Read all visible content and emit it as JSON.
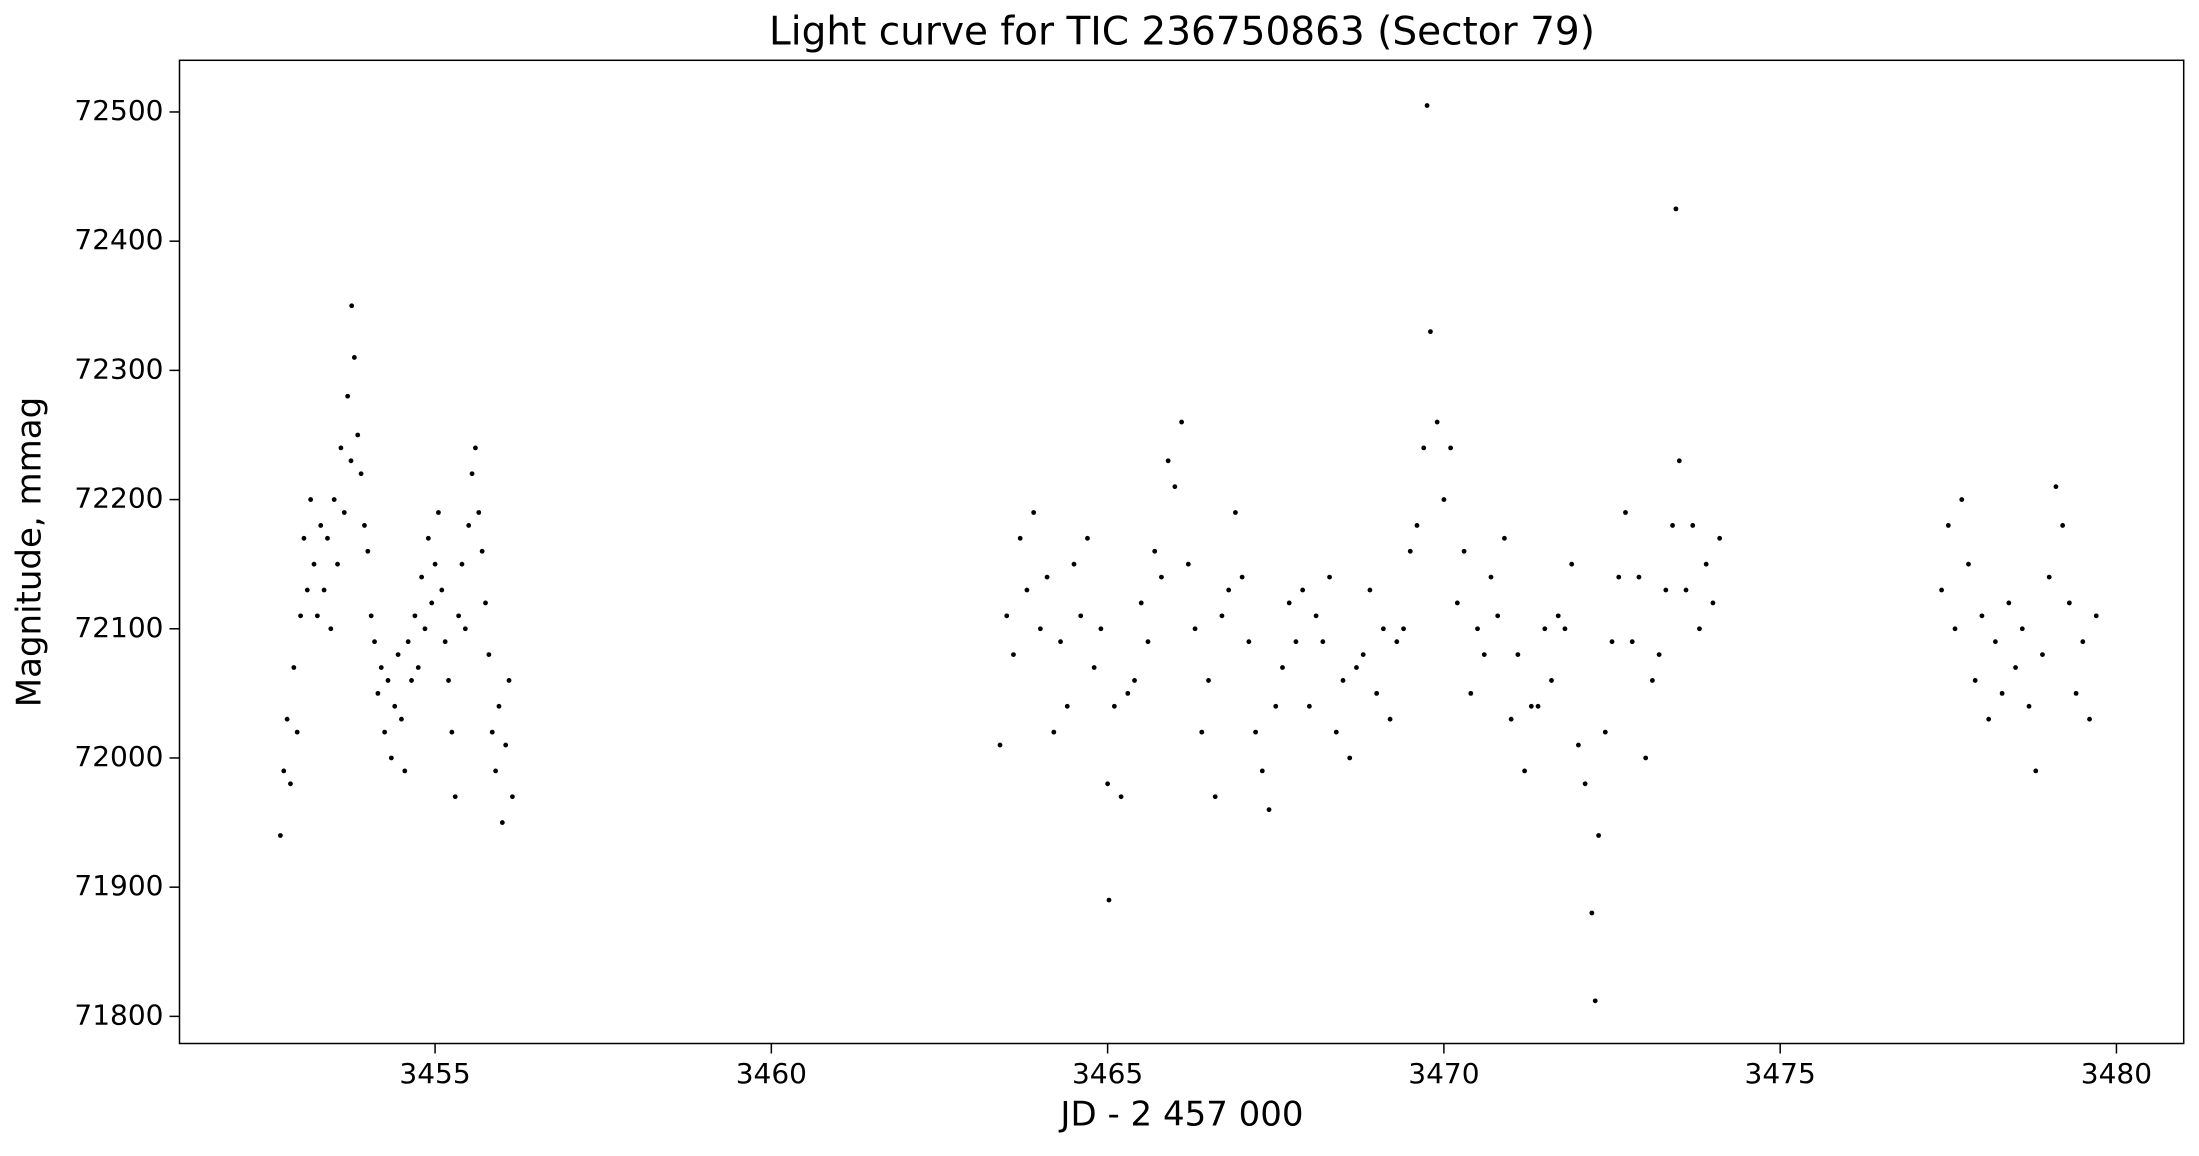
{
  "chart_data": {
    "type": "scatter",
    "title": "Light curve for TIC 236750863 (Sector 79)",
    "x_label": "JD - 2 457 000",
    "y_label": "Magnitude, mmag",
    "color": "#000000",
    "grid": false,
    "xlim": [
      3451.2,
      3481.0
    ],
    "ylim": [
      71779,
      72540
    ],
    "xticks": [
      3455,
      3460,
      3465,
      3470,
      3475,
      3480
    ],
    "yticks": [
      71800,
      71900,
      72000,
      72100,
      72200,
      72300,
      72400,
      72500
    ],
    "x": [
      3452.7,
      3452.75,
      3452.8,
      3452.85,
      3452.9,
      3452.95,
      3453.0,
      3453.05,
      3453.1,
      3453.15,
      3453.2,
      3453.25,
      3453.3,
      3453.35,
      3453.4,
      3453.45,
      3453.5,
      3453.55,
      3453.6,
      3453.65,
      3453.7,
      3453.75,
      3453.8,
      3453.85,
      3453.9,
      3453.95,
      3454.0,
      3454.05,
      3454.1,
      3454.15,
      3454.2,
      3454.25,
      3454.3,
      3454.35,
      3454.4,
      3454.45,
      3454.5,
      3454.55,
      3454.6,
      3454.65,
      3454.7,
      3454.75,
      3454.8,
      3454.85,
      3454.9,
      3454.95,
      3455.0,
      3455.05,
      3455.1,
      3455.15,
      3455.2,
      3455.25,
      3455.3,
      3455.35,
      3455.4,
      3455.45,
      3455.5,
      3455.55,
      3455.6,
      3455.65,
      3455.7,
      3455.75,
      3455.8,
      3455.85,
      3455.9,
      3455.95,
      3456.0,
      3456.05,
      3456.1,
      3456.15,
      3453.76,
      3463.4,
      3463.5,
      3463.6,
      3463.7,
      3463.8,
      3463.9,
      3464.0,
      3464.1,
      3464.2,
      3464.3,
      3464.4,
      3464.5,
      3464.6,
      3464.7,
      3464.8,
      3464.9,
      3465.0,
      3465.1,
      3465.2,
      3465.3,
      3465.4,
      3465.5,
      3465.6,
      3465.7,
      3465.8,
      3465.9,
      3466.0,
      3466.1,
      3466.2,
      3466.3,
      3466.4,
      3466.5,
      3466.6,
      3466.7,
      3466.8,
      3466.9,
      3467.0,
      3467.1,
      3467.2,
      3467.3,
      3467.4,
      3467.5,
      3467.6,
      3467.7,
      3467.8,
      3467.9,
      3468.0,
      3468.1,
      3468.2,
      3468.3,
      3468.4,
      3468.5,
      3468.6,
      3468.7,
      3468.8,
      3468.9,
      3469.0,
      3469.1,
      3469.2,
      3469.3,
      3469.4,
      3469.5,
      3469.6,
      3469.7,
      3469.8,
      3469.9,
      3470.0,
      3470.1,
      3470.2,
      3470.3,
      3470.4,
      3470.5,
      3470.6,
      3470.7,
      3470.8,
      3470.9,
      3471.0,
      3471.1,
      3471.2,
      3471.3,
      3471.4,
      3471.5,
      3471.6,
      3471.7,
      3471.8,
      3471.9,
      3472.0,
      3472.1,
      3472.2,
      3472.3,
      3472.4,
      3472.5,
      3472.6,
      3472.7,
      3472.8,
      3472.9,
      3473.0,
      3473.1,
      3473.2,
      3473.3,
      3473.4,
      3473.5,
      3473.6,
      3473.7,
      3473.8,
      3473.9,
      3474.0,
      3474.1,
      3469.75,
      3473.45,
      3472.25,
      3465.02,
      3477.4,
      3477.5,
      3477.6,
      3477.7,
      3477.8,
      3477.9,
      3478.0,
      3478.1,
      3478.2,
      3478.3,
      3478.4,
      3478.5,
      3478.6,
      3478.7,
      3478.8,
      3478.9,
      3479.0,
      3479.1,
      3479.2,
      3479.3,
      3479.4,
      3479.5,
      3479.6,
      3479.7
    ],
    "values": [
      71940,
      71990,
      72030,
      71980,
      72070,
      72020,
      72110,
      72170,
      72130,
      72200,
      72150,
      72110,
      72180,
      72130,
      72170,
      72100,
      72200,
      72150,
      72240,
      72190,
      72280,
      72230,
      72310,
      72250,
      72220,
      72180,
      72160,
      72110,
      72090,
      72050,
      72070,
      72020,
      72060,
      72000,
      72040,
      72080,
      72030,
      71990,
      72090,
      72060,
      72110,
      72070,
      72140,
      72100,
      72170,
      72120,
      72150,
      72190,
      72130,
      72090,
      72060,
      72020,
      71970,
      72110,
      72150,
      72100,
      72180,
      72220,
      72240,
      72190,
      72160,
      72120,
      72080,
      72020,
      71990,
      72040,
      71950,
      72010,
      72060,
      71970,
      72350,
      72010,
      72110,
      72080,
      72170,
      72130,
      72190,
      72100,
      72140,
      72020,
      72090,
      72040,
      72150,
      72110,
      72170,
      72070,
      72100,
      71980,
      72040,
      71970,
      72050,
      72060,
      72120,
      72090,
      72160,
      72140,
      72230,
      72210,
      72260,
      72150,
      72100,
      72020,
      72060,
      71970,
      72110,
      72130,
      72190,
      72140,
      72090,
      72020,
      71990,
      71960,
      72040,
      72070,
      72120,
      72090,
      72130,
      72040,
      72110,
      72090,
      72140,
      72020,
      72060,
      72000,
      72070,
      72080,
      72130,
      72050,
      72100,
      72030,
      72090,
      72100,
      72160,
      72180,
      72240,
      72330,
      72260,
      72200,
      72240,
      72120,
      72160,
      72050,
      72100,
      72080,
      72140,
      72110,
      72170,
      72030,
      72080,
      71990,
      72040,
      72040,
      72100,
      72060,
      72110,
      72100,
      72150,
      72010,
      71980,
      71880,
      71940,
      72020,
      72090,
      72140,
      72190,
      72090,
      72140,
      72000,
      72060,
      72080,
      72130,
      72180,
      72230,
      72130,
      72180,
      72100,
      72150,
      72120,
      72170,
      72505,
      72425,
      71812,
      71890,
      72130,
      72180,
      72100,
      72200,
      72150,
      72060,
      72110,
      72030,
      72090,
      72050,
      72120,
      72070,
      72100,
      72040,
      71990,
      72080,
      72140,
      72210,
      72180,
      72120,
      72050,
      72090,
      72030,
      72110
    ]
  }
}
